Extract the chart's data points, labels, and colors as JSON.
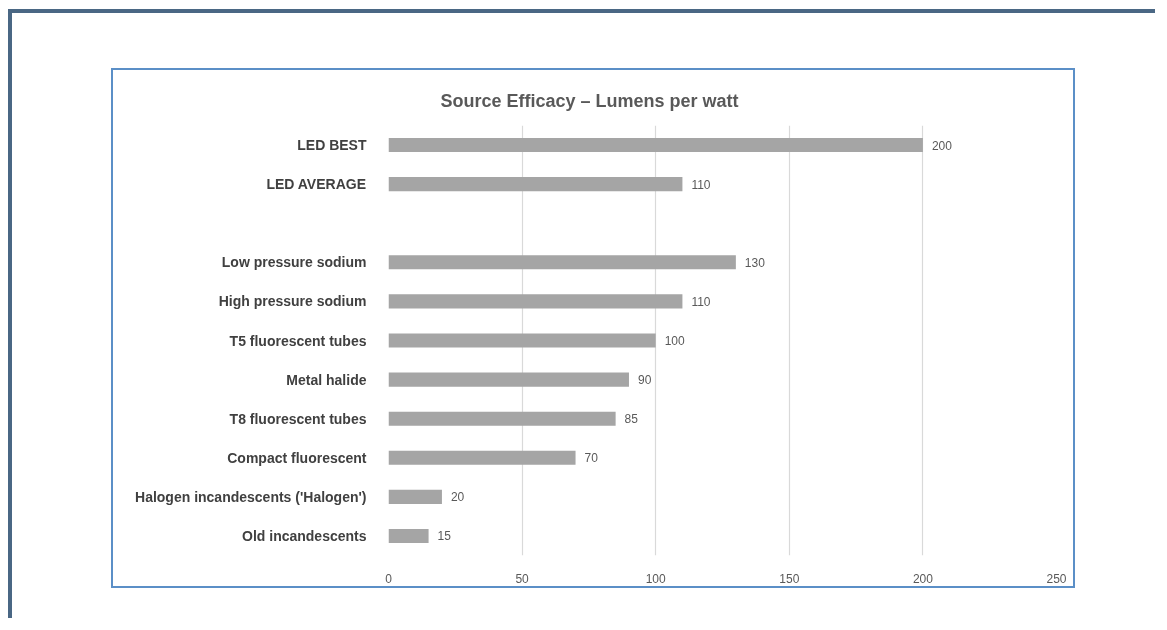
{
  "chart_data": {
    "type": "bar",
    "orientation": "horizontal",
    "title": "Source Efficacy – Lumens per watt",
    "categories": [
      "LED BEST",
      "LED AVERAGE",
      null,
      "Low pressure sodium",
      "High pressure sodium",
      "T5 fluorescent tubes",
      "Metal halide",
      "T8 fluorescent tubes",
      "Compact fluorescent",
      "Halogen incandescents ('Halogen')",
      "Old incandescents"
    ],
    "values": [
      200,
      110,
      null,
      130,
      110,
      100,
      90,
      85,
      70,
      20,
      15
    ],
    "color": "#a5a5a5",
    "xlim": [
      0,
      250
    ],
    "xticks": [
      0,
      50,
      100,
      150,
      200,
      250
    ],
    "grid": "x",
    "data_labels": true
  }
}
